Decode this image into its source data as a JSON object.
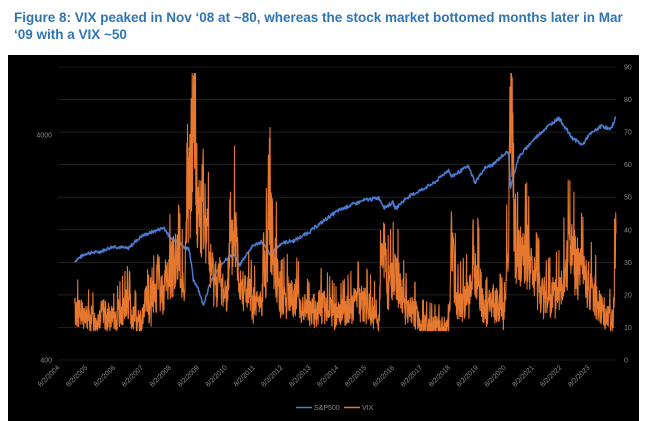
{
  "title": "Figure 8: VIX peaked in Nov ‘08 at ~80, whereas the stock market bottomed months later in Mar ‘09 with a VIX ~50",
  "chart_data": {
    "type": "line",
    "title": "Figure 8: VIX peaked in Nov ‘08 at ~80, whereas the stock market bottomed months later in Mar ‘09 with a VIX ~50",
    "x_tick_labels": [
      "8/2/2004",
      "8/2/2005",
      "8/2/2006",
      "8/2/2007",
      "8/2/2008",
      "8/2/2009",
      "8/2/2010",
      "8/2/2011",
      "8/2/2012",
      "8/2/2013",
      "8/2/2014",
      "8/2/2015",
      "8/2/2016",
      "8/2/2017",
      "8/2/2018",
      "8/2/2019",
      "8/2/2020",
      "8/2/2021",
      "8/2/2022",
      "8/2/2023"
    ],
    "x_range": [
      2004.0,
      2024.0
    ],
    "left_axis": {
      "scale": "log",
      "range": [
        400,
        8000
      ],
      "tick_labels": [
        "400",
        "4000"
      ],
      "tick_values": [
        400,
        4000
      ]
    },
    "right_axis": {
      "scale": "linear",
      "range": [
        0,
        90
      ],
      "tick_labels": [
        "0",
        "10",
        "20",
        "30",
        "40",
        "50",
        "60",
        "70",
        "80",
        "90"
      ],
      "tick_values": [
        0,
        10,
        20,
        30,
        40,
        50,
        60,
        70,
        80,
        90
      ]
    },
    "grid": true,
    "legend_position": "bottom-center",
    "colors": {
      "sp500": "#4a7bd0",
      "vix": "#e6772e",
      "grid": "#333333",
      "tick": "#8a8a8a"
    },
    "series": [
      {
        "name": "S&P500",
        "axis": "left",
        "x": [
          2004.6,
          2005.0,
          2005.5,
          2006.0,
          2006.5,
          2007.0,
          2007.5,
          2007.8,
          2008.0,
          2008.3,
          2008.5,
          2008.7,
          2008.85,
          2009.0,
          2009.2,
          2009.5,
          2010.0,
          2010.3,
          2010.5,
          2010.8,
          2011.0,
          2011.3,
          2011.6,
          2011.8,
          2012.0,
          2012.5,
          2013.0,
          2013.5,
          2014.0,
          2014.5,
          2015.0,
          2015.5,
          2015.7,
          2016.0,
          2016.1,
          2016.5,
          2017.0,
          2017.5,
          2018.0,
          2018.1,
          2018.5,
          2018.7,
          2018.95,
          2019.3,
          2019.6,
          2020.0,
          2020.15,
          2020.22,
          2020.5,
          2021.0,
          2021.5,
          2021.95,
          2022.4,
          2022.8,
          2023.0,
          2023.5,
          2023.8,
          2024.0
        ],
        "y": [
          1100,
          1190,
          1210,
          1280,
          1250,
          1420,
          1500,
          1550,
          1400,
          1350,
          1270,
          1250,
          900,
          850,
          700,
          900,
          1120,
          1180,
          1050,
          1200,
          1290,
          1340,
          1170,
          1240,
          1320,
          1360,
          1480,
          1650,
          1830,
          1950,
          2050,
          2100,
          1900,
          2000,
          1880,
          2100,
          2270,
          2450,
          2800,
          2600,
          2800,
          2900,
          2450,
          2850,
          2950,
          3300,
          3350,
          2300,
          3150,
          3750,
          4300,
          4750,
          3900,
          3600,
          3950,
          4400,
          4200,
          4800
        ]
      },
      {
        "name": "VIX",
        "axis": "right",
        "x": [
          2004.6,
          2004.8,
          2005.0,
          2005.3,
          2005.6,
          2005.8,
          2006.0,
          2006.4,
          2006.5,
          2006.8,
          2007.0,
          2007.15,
          2007.3,
          2007.6,
          2007.7,
          2007.9,
          2008.0,
          2008.2,
          2008.5,
          2008.75,
          2008.88,
          2009.0,
          2009.2,
          2009.5,
          2009.8,
          2010.0,
          2010.35,
          2010.5,
          2010.8,
          2011.0,
          2011.3,
          2011.6,
          2011.8,
          2012.0,
          2012.4,
          2012.8,
          2013.0,
          2013.5,
          2014.0,
          2014.5,
          2014.8,
          2015.0,
          2015.5,
          2015.65,
          2015.8,
          2016.1,
          2016.5,
          2016.8,
          2017.0,
          2017.5,
          2018.0,
          2018.1,
          2018.3,
          2018.8,
          2018.95,
          2019.3,
          2019.6,
          2020.0,
          2020.15,
          2020.22,
          2020.4,
          2020.8,
          2021.0,
          2021.5,
          2022.0,
          2022.3,
          2022.8,
          2023.2,
          2023.6,
          2023.9,
          2024.0
        ],
        "y": [
          15,
          14,
          13,
          12,
          14,
          13,
          12,
          16,
          17,
          12,
          11,
          18,
          14,
          25,
          20,
          25,
          26,
          32,
          22,
          58,
          80,
          45,
          48,
          26,
          24,
          20,
          40,
          26,
          20,
          17,
          17,
          42,
          30,
          18,
          20,
          16,
          14,
          17,
          13,
          16,
          18,
          17,
          13,
          40,
          22,
          26,
          15,
          14,
          11,
          10,
          10,
          37,
          17,
          20,
          30,
          14,
          18,
          14,
          40,
          82,
          30,
          32,
          25,
          18,
          20,
          33,
          26,
          20,
          14,
          12,
          39
        ]
      }
    ]
  }
}
